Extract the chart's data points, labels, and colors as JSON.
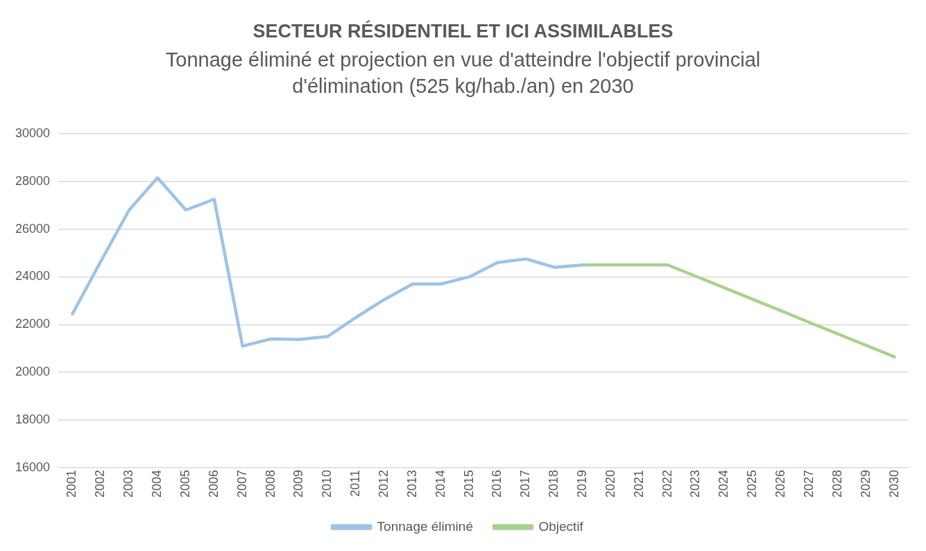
{
  "chart_data": {
    "type": "line",
    "title": "SECTEUR RÉSIDENTIEL ET ICI ASSIMILABLES",
    "subtitle": "Tonnage éliminé et projection en vue d'atteindre l'objectif provincial d'élimination (525 kg/hab./an) en 2030",
    "categories": [
      "2001",
      "2002",
      "2003",
      "2004",
      "2005",
      "2006",
      "2007",
      "2008",
      "2009",
      "2010",
      "2011",
      "2012",
      "2013",
      "2014",
      "2015",
      "2016",
      "2017",
      "2018",
      "2019",
      "2020",
      "2021",
      "2022",
      "2023",
      "2024",
      "2025",
      "2026",
      "2027",
      "2028",
      "2029",
      "2030"
    ],
    "series": [
      {
        "name": "Tonnage éliminé",
        "color": "#9dc3e6",
        "values": [
          22450,
          24650,
          26800,
          28150,
          26800,
          27250,
          21100,
          21400,
          21380,
          21500,
          22300,
          23050,
          23700,
          23700,
          24000,
          24600,
          24750,
          24400,
          24500,
          null,
          null,
          null,
          null,
          null,
          null,
          null,
          null,
          null,
          null,
          null
        ]
      },
      {
        "name": "Objectif",
        "color": "#a9d18e",
        "values": [
          null,
          null,
          null,
          null,
          null,
          null,
          null,
          null,
          null,
          null,
          null,
          null,
          null,
          null,
          null,
          null,
          null,
          null,
          24500,
          24500,
          24500,
          24500,
          24020,
          23540,
          23060,
          22580,
          22090,
          21610,
          21130,
          20650
        ]
      }
    ],
    "ylim": [
      16000,
      30000
    ],
    "yticks": [
      16000,
      18000,
      20000,
      22000,
      24000,
      26000,
      28000,
      30000
    ],
    "grid": "y",
    "legend": "bottom",
    "marker": "none",
    "line_style": "solid"
  }
}
